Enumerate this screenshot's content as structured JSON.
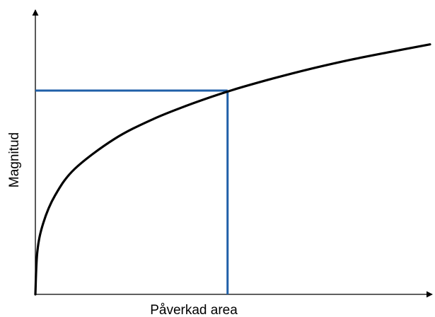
{
  "chart_data": {
    "type": "line",
    "title": "",
    "xlabel": "Påverkad area",
    "ylabel": "Magnitud",
    "grid": false,
    "legend": "none",
    "axis_color": "#000000",
    "series": [
      {
        "color": "#000000",
        "x": [
          0,
          0.005,
          0.02,
          0.05,
          0.1,
          0.2,
          0.3,
          0.4,
          0.5,
          0.6,
          0.7,
          0.8,
          0.9,
          1.0
        ],
        "y": [
          0,
          0.148,
          0.247,
          0.343,
          0.435,
          0.538,
          0.608,
          0.662,
          0.708,
          0.747,
          0.782,
          0.813,
          0.84,
          0.866
        ]
      }
    ],
    "annotations": [
      {
        "type": "guide-lines",
        "color": "#1f5fa8",
        "x": 0.487,
        "y": 0.706
      }
    ]
  }
}
